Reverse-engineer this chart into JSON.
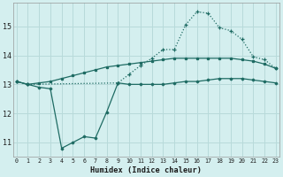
{
  "xlabel": "Humidex (Indice chaleur)",
  "bg_color": "#d4efef",
  "grid_color": "#b8dada",
  "line_color": "#1e6b63",
  "x": [
    0,
    1,
    2,
    3,
    4,
    5,
    6,
    7,
    8,
    9,
    10,
    11,
    12,
    13,
    14,
    15,
    16,
    17,
    18,
    19,
    20,
    21,
    22,
    23
  ],
  "line1_x": [
    0,
    1,
    9,
    10,
    11,
    12,
    13,
    14,
    15,
    16,
    17,
    18,
    19,
    20,
    21,
    22,
    23
  ],
  "line1_y": [
    13.1,
    13.0,
    13.05,
    13.35,
    13.65,
    13.9,
    14.2,
    14.2,
    15.05,
    15.5,
    15.45,
    14.95,
    14.85,
    14.55,
    13.95,
    13.85,
    13.55
  ],
  "line2": [
    13.1,
    13.0,
    13.05,
    13.1,
    13.2,
    13.3,
    13.4,
    13.5,
    13.6,
    13.65,
    13.7,
    13.75,
    13.8,
    13.85,
    13.9,
    13.9,
    13.9,
    13.9,
    13.9,
    13.9,
    13.85,
    13.8,
    13.7,
    13.55
  ],
  "line3": [
    13.1,
    13.0,
    12.9,
    12.85,
    10.8,
    11.0,
    11.2,
    11.15,
    12.05,
    13.05,
    13.0,
    13.0,
    13.0,
    13.0,
    13.05,
    13.1,
    13.1,
    13.15,
    13.2,
    13.2,
    13.2,
    13.15,
    13.1,
    13.05
  ],
  "ylim": [
    10.5,
    15.8
  ],
  "yticks": [
    11,
    12,
    13,
    14,
    15
  ],
  "xlim": [
    -0.3,
    23.3
  ]
}
